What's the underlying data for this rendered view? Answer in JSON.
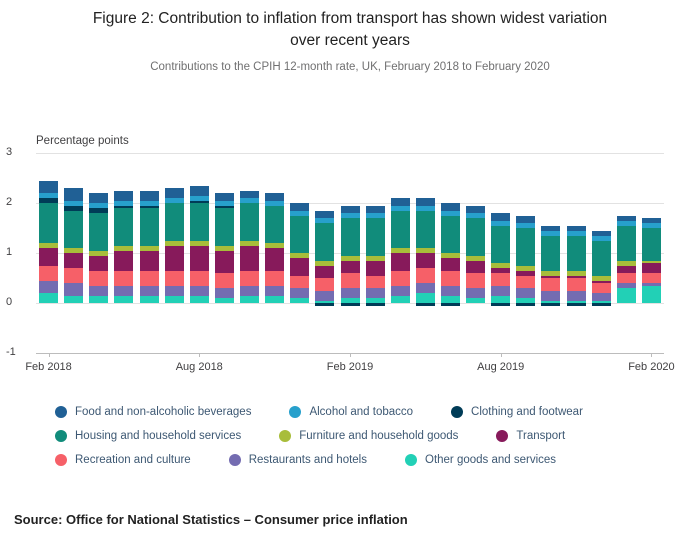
{
  "header": {
    "title": "Figure 2: Contribution to inflation from transport has shown widest variation over recent years",
    "subtitle": "Contributions to the CPIH 12-month rate, UK, February 2018 to February 2020"
  },
  "footer": {
    "source": "Source: Office for National Statistics – Consumer price inflation"
  },
  "style": {
    "grid_color": "#e2e2e2",
    "axis_color": "#bcbcbc",
    "text_color": "#414042",
    "subtitle_color": "#707071"
  },
  "chart_data": {
    "type": "bar",
    "stacked": true,
    "title": "Figure 2: Contribution to inflation from transport has shown widest variation over recent years",
    "subtitle": "Contributions to the CPIH 12-month rate, UK, February 2018 to February 2020",
    "ylabel": "Percentage points",
    "xlabel": "",
    "ylim": [
      -1,
      3
    ],
    "yticks": [
      3,
      2,
      1,
      0,
      -1
    ],
    "grid": true,
    "legend_position": "bottom",
    "stack_order": "reverse (last series at bottom of stack, first series on top)",
    "categories": [
      "Feb 2018",
      "Mar 2018",
      "Apr 2018",
      "May 2018",
      "Jun 2018",
      "Jul 2018",
      "Aug 2018",
      "Sep 2018",
      "Oct 2018",
      "Nov 2018",
      "Dec 2018",
      "Jan 2019",
      "Feb 2019",
      "Mar 2019",
      "Apr 2019",
      "May 2019",
      "Jun 2019",
      "Jul 2019",
      "Aug 2019",
      "Sep 2019",
      "Oct 2019",
      "Nov 2019",
      "Dec 2019",
      "Jan 2020",
      "Feb 2020"
    ],
    "x_tick_labels": [
      "Feb 2018",
      "Aug 2018",
      "Feb 2019",
      "Aug 2019",
      "Feb 2020"
    ],
    "x_tick_indices": [
      0,
      6,
      12,
      18,
      24
    ],
    "series": [
      {
        "name": "Food and non-alcoholic beverages",
        "color": "#206095",
        "values": [
          0.25,
          0.25,
          0.2,
          0.2,
          0.2,
          0.2,
          0.2,
          0.15,
          0.15,
          0.15,
          0.15,
          0.15,
          0.15,
          0.15,
          0.15,
          0.15,
          0.15,
          0.15,
          0.15,
          0.15,
          0.1,
          0.1,
          0.1,
          0.1,
          0.1
        ]
      },
      {
        "name": "Alcohol and tobacco",
        "color": "#27A0CC",
        "values": [
          0.1,
          0.1,
          0.1,
          0.1,
          0.1,
          0.1,
          0.1,
          0.1,
          0.1,
          0.1,
          0.1,
          0.1,
          0.1,
          0.1,
          0.1,
          0.1,
          0.1,
          0.1,
          0.1,
          0.1,
          0.1,
          0.1,
          0.1,
          0.1,
          0.1
        ]
      },
      {
        "name": "Clothing and footwear",
        "color": "#003C57",
        "values": [
          0.1,
          0.1,
          0.1,
          0.05,
          0.05,
          0.0,
          0.05,
          0.05,
          0.0,
          0.0,
          0.0,
          -0.05,
          -0.05,
          -0.05,
          0.0,
          -0.05,
          -0.05,
          0.0,
          -0.05,
          -0.05,
          -0.05,
          -0.05,
          -0.05,
          0.0,
          0.0
        ]
      },
      {
        "name": "Housing and household services",
        "color": "#118C7B",
        "values": [
          0.8,
          0.75,
          0.75,
          0.75,
          0.75,
          0.75,
          0.75,
          0.75,
          0.75,
          0.75,
          0.75,
          0.75,
          0.75,
          0.75,
          0.75,
          0.75,
          0.75,
          0.75,
          0.75,
          0.75,
          0.7,
          0.7,
          0.7,
          0.7,
          0.65
        ]
      },
      {
        "name": "Furniture and household goods",
        "color": "#A8BD3A",
        "values": [
          0.1,
          0.1,
          0.1,
          0.1,
          0.1,
          0.1,
          0.1,
          0.1,
          0.1,
          0.1,
          0.1,
          0.1,
          0.1,
          0.1,
          0.1,
          0.1,
          0.1,
          0.1,
          0.1,
          0.1,
          0.1,
          0.1,
          0.1,
          0.1,
          0.05
        ]
      },
      {
        "name": "Transport",
        "color": "#871A5B",
        "values": [
          0.35,
          0.3,
          0.3,
          0.4,
          0.4,
          0.5,
          0.5,
          0.45,
          0.5,
          0.45,
          0.35,
          0.25,
          0.25,
          0.3,
          0.35,
          0.3,
          0.25,
          0.25,
          0.1,
          0.1,
          0.05,
          0.05,
          0.05,
          0.15,
          0.2
        ]
      },
      {
        "name": "Recreation and culture",
        "color": "#F66068",
        "values": [
          0.3,
          0.3,
          0.3,
          0.3,
          0.3,
          0.3,
          0.3,
          0.3,
          0.3,
          0.3,
          0.25,
          0.25,
          0.3,
          0.25,
          0.3,
          0.3,
          0.3,
          0.3,
          0.25,
          0.25,
          0.25,
          0.25,
          0.2,
          0.2,
          0.2
        ]
      },
      {
        "name": "Restaurants and hotels",
        "color": "#746CB1",
        "values": [
          0.25,
          0.25,
          0.2,
          0.2,
          0.2,
          0.2,
          0.2,
          0.2,
          0.2,
          0.2,
          0.2,
          0.2,
          0.2,
          0.2,
          0.2,
          0.2,
          0.2,
          0.2,
          0.2,
          0.2,
          0.2,
          0.2,
          0.15,
          0.1,
          0.05
        ]
      },
      {
        "name": "Other goods and services",
        "color": "#22D0B6",
        "values": [
          0.2,
          0.15,
          0.15,
          0.15,
          0.15,
          0.15,
          0.15,
          0.1,
          0.15,
          0.15,
          0.1,
          0.05,
          0.1,
          0.1,
          0.15,
          0.2,
          0.15,
          0.1,
          0.15,
          0.1,
          0.05,
          0.05,
          0.05,
          0.3,
          0.35
        ]
      }
    ],
    "legend_rows": [
      [
        0,
        1,
        2
      ],
      [
        3,
        4,
        5
      ],
      [
        6,
        7,
        8
      ]
    ]
  }
}
